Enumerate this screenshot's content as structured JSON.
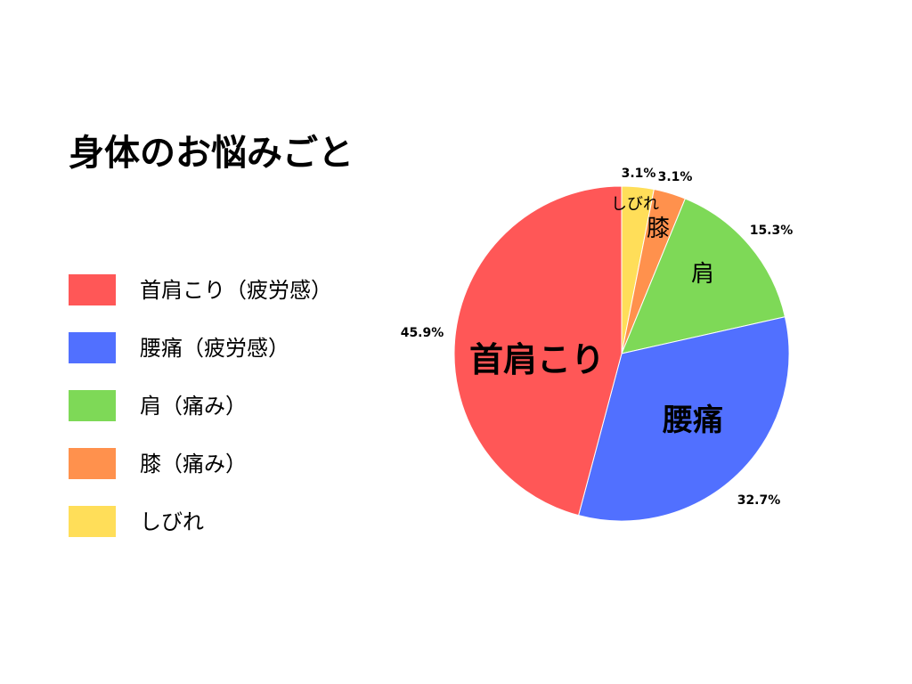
{
  "title": "身体のお悩みごと",
  "legend": [
    {
      "label": "首肩こり（疲労感）",
      "color": "#FF5757"
    },
    {
      "label": "腰痛（疲労感）",
      "color": "#5170FF"
    },
    {
      "label": "肩（痛み）",
      "color": "#7ED957"
    },
    {
      "label": "膝（痛み）",
      "color": "#FF914D"
    },
    {
      "label": "しびれ",
      "color": "#FFDE59"
    }
  ],
  "chart_data": {
    "type": "pie",
    "title": "身体のお悩みごと",
    "start": "12 o'clock",
    "direction": "clockwise",
    "legend_position": "left",
    "slices": [
      {
        "label": "しびれ",
        "value": 3.1,
        "percent_label": "3.1%",
        "color": "#FFDE59"
      },
      {
        "label": "膝",
        "value": 3.1,
        "percent_label": "3.1%",
        "color": "#FF914D"
      },
      {
        "label": "肩",
        "value": 15.3,
        "percent_label": "15.3%",
        "color": "#7ED957"
      },
      {
        "label": "腰痛",
        "value": 32.7,
        "percent_label": "32.7%",
        "color": "#5170FF"
      },
      {
        "label": "首肩こり",
        "value": 45.9,
        "percent_label": "45.9%",
        "color": "#FF5757"
      }
    ]
  }
}
